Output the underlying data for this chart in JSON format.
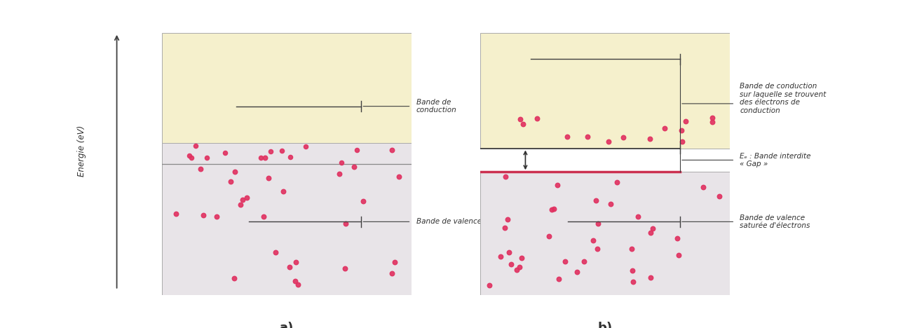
{
  "fig_width": 13.18,
  "fig_height": 4.68,
  "bg_color": "#ffffff",
  "panel_a": {
    "label_a": "a)",
    "label_conduction": "Bande de\nconduction",
    "label_valence": "Bande de valence",
    "energy_label": "Energie (eV)"
  },
  "panel_b": {
    "label_b": "b)",
    "label_conduction": "Bande de conduction\nsur laquelle se trouvent\ndes électrons de\nconduction",
    "label_gap": "Eₑ : Bande interdite\n« Gap »",
    "label_valence": "Bande de valence\nsaturée d'électrons"
  },
  "cond_color": "#f5f0cc",
  "val_color": "#e8e4e8",
  "dot_color": "#e03060",
  "dot_alpha": 0.9,
  "dot_size": 22,
  "line_color": "#404040",
  "gap_line_color": "#cc3050",
  "text_color": "#303030",
  "font_size_labels": 7.5,
  "font_size_axis": 8.5,
  "font_size_sublabel": 13
}
